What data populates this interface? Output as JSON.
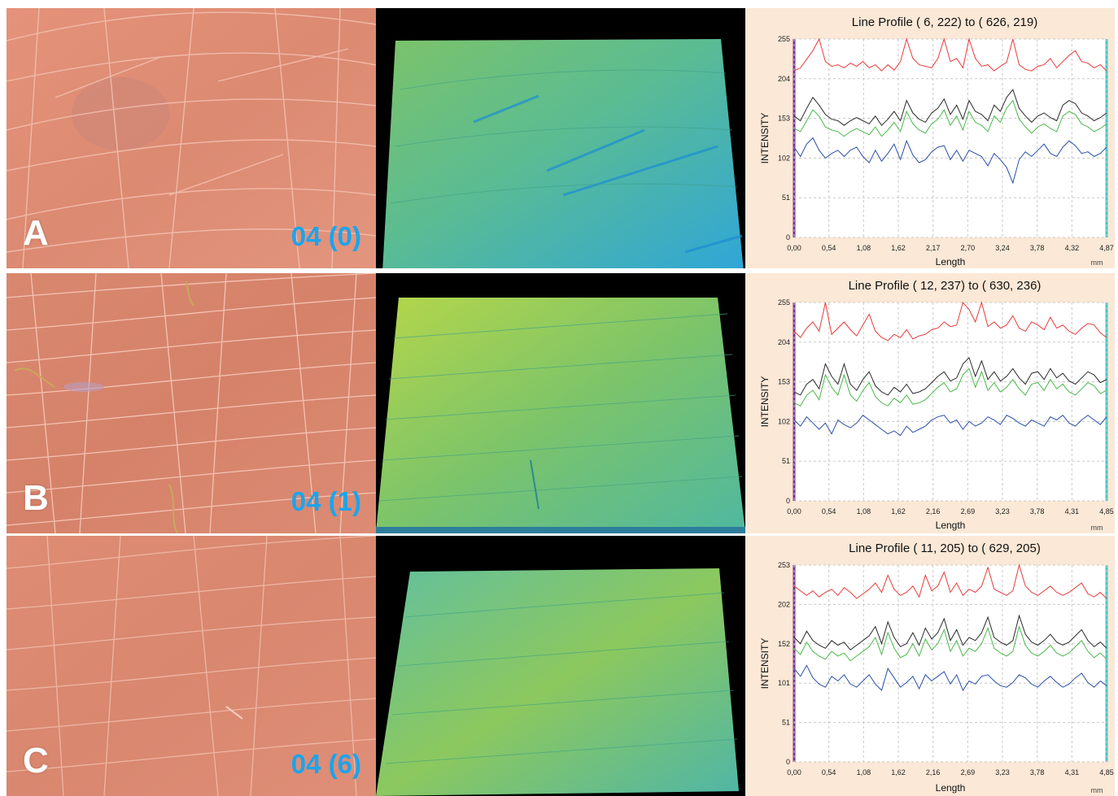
{
  "colors": {
    "series_red": "#e83a3a",
    "series_black": "#2b2b2b",
    "series_green": "#4cb84c",
    "series_blue": "#2a4fa8",
    "label_blue": "#1aa4ee",
    "profile_bg": "#fbe8d6"
  },
  "panels": [
    {
      "letter": "A",
      "code": "04 (0)"
    },
    {
      "letter": "B",
      "code": "04 (1)"
    },
    {
      "letter": "C",
      "code": "04 (6)"
    }
  ],
  "chart_data": [
    {
      "type": "line",
      "title": "Line Profile ( 6, 222) to ( 626, 219)",
      "xlabel": "Length",
      "ylabel": "INTENSITY",
      "unit": "mm",
      "x_ticks": [
        "0,00",
        "0,54",
        "1,08",
        "1,62",
        "2,17",
        "2,70",
        "3,24",
        "3,78",
        "4,32",
        "4,87"
      ],
      "y_ticks": [
        "0",
        "51",
        "102",
        "153",
        "204",
        "255"
      ],
      "xlim": [
        0,
        4.87
      ],
      "ylim": [
        0,
        255
      ],
      "grid": true,
      "series": [
        {
          "color": "red",
          "values": [
            214,
            218,
            229,
            240,
            255,
            226,
            220,
            222,
            218,
            224,
            220,
            226,
            218,
            222,
            214,
            222,
            215,
            226,
            255,
            230,
            222,
            220,
            218,
            230,
            255,
            226,
            230,
            218,
            255,
            230,
            220,
            222,
            214,
            220,
            225,
            255,
            222,
            216,
            214,
            220,
            222,
            230,
            218,
            226,
            234,
            240,
            226,
            224,
            218,
            222,
            214
          ]
        },
        {
          "color": "black",
          "values": [
            156,
            150,
            166,
            180,
            170,
            158,
            152,
            150,
            144,
            150,
            154,
            150,
            146,
            156,
            144,
            152,
            162,
            150,
            176,
            160,
            152,
            148,
            160,
            166,
            178,
            158,
            170,
            152,
            176,
            162,
            158,
            150,
            170,
            162,
            180,
            190,
            166,
            156,
            148,
            156,
            160,
            154,
            150,
            170,
            176,
            172,
            160,
            156,
            150,
            154,
            160
          ]
        },
        {
          "color": "green",
          "values": [
            140,
            136,
            150,
            164,
            156,
            142,
            138,
            136,
            130,
            136,
            140,
            136,
            132,
            142,
            130,
            138,
            148,
            136,
            162,
            146,
            138,
            134,
            146,
            152,
            164,
            144,
            156,
            138,
            162,
            148,
            144,
            136,
            156,
            148,
            166,
            176,
            152,
            142,
            134,
            142,
            146,
            140,
            136,
            156,
            162,
            158,
            146,
            142,
            136,
            140,
            146
          ]
        },
        {
          "color": "blue",
          "values": [
            116,
            104,
            120,
            128,
            112,
            102,
            108,
            112,
            104,
            112,
            116,
            104,
            96,
            112,
            98,
            108,
            120,
            100,
            124,
            106,
            96,
            100,
            110,
            116,
            118,
            100,
            112,
            98,
            112,
            108,
            104,
            92,
            108,
            100,
            90,
            70,
            100,
            110,
            104,
            112,
            120,
            108,
            104,
            116,
            124,
            118,
            108,
            110,
            104,
            108,
            116
          ]
        }
      ]
    },
    {
      "type": "line",
      "title": "Line Profile ( 12, 237) to ( 630, 236)",
      "xlabel": "Length",
      "ylabel": "INTENSITY",
      "unit": "mm",
      "x_ticks": [
        "0,00",
        "0,54",
        "1,08",
        "1,62",
        "2,16",
        "2,69",
        "3,23",
        "3,78",
        "4,31",
        "4,85"
      ],
      "y_ticks": [
        "0",
        "51",
        "102",
        "153",
        "204",
        "255"
      ],
      "xlim": [
        0,
        4.85
      ],
      "ylim": [
        0,
        255
      ],
      "grid": true,
      "series": [
        {
          "color": "red",
          "values": [
            218,
            210,
            222,
            230,
            218,
            255,
            214,
            222,
            230,
            220,
            212,
            226,
            240,
            218,
            210,
            206,
            214,
            210,
            220,
            208,
            212,
            214,
            220,
            222,
            230,
            224,
            226,
            255,
            246,
            230,
            255,
            224,
            230,
            222,
            226,
            238,
            222,
            218,
            230,
            226,
            220,
            236,
            222,
            226,
            218,
            214,
            222,
            228,
            226,
            216,
            210
          ]
        },
        {
          "color": "black",
          "values": [
            140,
            136,
            150,
            156,
            144,
            176,
            160,
            150,
            176,
            150,
            142,
            156,
            166,
            148,
            140,
            136,
            146,
            140,
            150,
            138,
            140,
            144,
            152,
            160,
            166,
            154,
            158,
            176,
            184,
            160,
            180,
            156,
            166,
            154,
            160,
            170,
            158,
            150,
            164,
            166,
            156,
            170,
            158,
            164,
            154,
            150,
            158,
            166,
            162,
            152,
            156
          ]
        },
        {
          "color": "green",
          "values": [
            126,
            122,
            136,
            142,
            130,
            162,
            146,
            136,
            162,
            136,
            128,
            142,
            152,
            134,
            126,
            122,
            132,
            126,
            136,
            124,
            126,
            130,
            138,
            146,
            152,
            140,
            144,
            162,
            170,
            146,
            166,
            142,
            152,
            140,
            146,
            156,
            144,
            136,
            150,
            152,
            142,
            156,
            144,
            150,
            140,
            136,
            144,
            152,
            148,
            138,
            142
          ]
        },
        {
          "color": "blue",
          "values": [
            104,
            96,
            108,
            100,
            92,
            100,
            86,
            104,
            98,
            94,
            100,
            110,
            104,
            98,
            92,
            86,
            90,
            84,
            96,
            88,
            92,
            96,
            104,
            108,
            110,
            100,
            104,
            92,
            102,
            96,
            100,
            108,
            104,
            98,
            110,
            106,
            100,
            96,
            104,
            100,
            96,
            108,
            104,
            110,
            100,
            96,
            104,
            110,
            104,
            98,
            108
          ]
        }
      ]
    },
    {
      "type": "line",
      "title": "Line Profile ( 11, 205) to ( 629, 205)",
      "xlabel": "Length",
      "ylabel": "INTENSITY",
      "unit": "mm",
      "x_ticks": [
        "0,00",
        "0,54",
        "1,08",
        "1,62",
        "2,16",
        "2,69",
        "3,23",
        "3,78",
        "4,31",
        "4,85"
      ],
      "y_ticks": [
        "0",
        "51",
        "101",
        "152",
        "202",
        "253"
      ],
      "xlim": [
        0,
        4.85
      ],
      "ylim": [
        0,
        253
      ],
      "grid": true,
      "series": [
        {
          "color": "red",
          "values": [
            226,
            220,
            214,
            220,
            212,
            218,
            222,
            214,
            224,
            218,
            210,
            216,
            222,
            230,
            218,
            240,
            222,
            214,
            218,
            226,
            212,
            240,
            220,
            226,
            244,
            218,
            230,
            214,
            222,
            218,
            226,
            250,
            222,
            218,
            214,
            220,
            253,
            226,
            218,
            214,
            220,
            226,
            218,
            214,
            218,
            224,
            230,
            216,
            212,
            218,
            210
          ]
        },
        {
          "color": "black",
          "values": [
            160,
            152,
            168,
            156,
            150,
            146,
            156,
            150,
            154,
            144,
            150,
            156,
            162,
            174,
            152,
            180,
            160,
            148,
            152,
            166,
            150,
            172,
            158,
            166,
            184,
            156,
            170,
            150,
            160,
            156,
            166,
            186,
            160,
            154,
            150,
            156,
            188,
            164,
            154,
            150,
            156,
            164,
            154,
            150,
            154,
            162,
            170,
            156,
            148,
            154,
            146
          ]
        },
        {
          "color": "green",
          "values": [
            146,
            138,
            154,
            142,
            136,
            132,
            142,
            136,
            140,
            130,
            136,
            142,
            148,
            160,
            138,
            166,
            146,
            134,
            138,
            152,
            136,
            158,
            144,
            152,
            170,
            142,
            156,
            136,
            146,
            142,
            152,
            172,
            146,
            140,
            136,
            142,
            174,
            150,
            140,
            136,
            142,
            150,
            140,
            136,
            140,
            148,
            156,
            142,
            134,
            140,
            132
          ]
        },
        {
          "color": "blue",
          "values": [
            120,
            110,
            124,
            108,
            100,
            96,
            110,
            104,
            112,
            100,
            96,
            104,
            112,
            100,
            92,
            120,
            108,
            96,
            102,
            110,
            94,
            112,
            104,
            110,
            116,
            100,
            112,
            92,
            104,
            100,
            110,
            112,
            104,
            98,
            96,
            102,
            112,
            108,
            100,
            96,
            104,
            110,
            102,
            96,
            100,
            108,
            114,
            102,
            96,
            104,
            98
          ]
        }
      ]
    }
  ]
}
